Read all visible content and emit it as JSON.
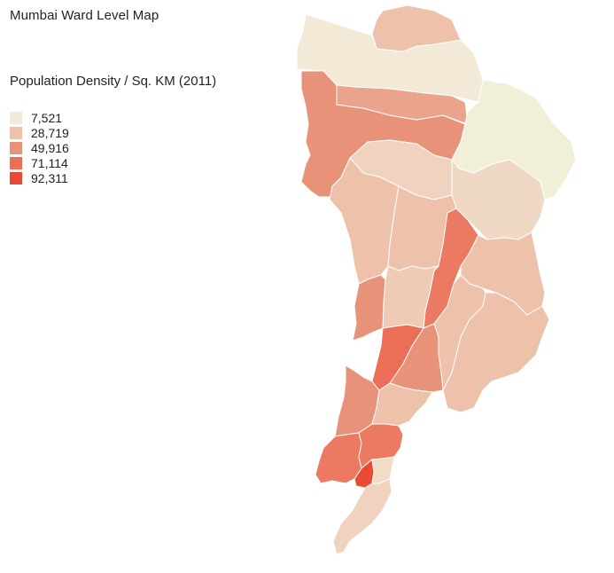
{
  "title": "Mumbai Ward Level Map",
  "legend": {
    "title": "Population Density / Sq. KM (2011)",
    "items": [
      {
        "label": "7,521",
        "color": "#f2e9d6"
      },
      {
        "label": "28,719",
        "color": "#eec1ab"
      },
      {
        "label": "49,916",
        "color": "#e9927a"
      },
      {
        "label": "71,114",
        "color": "#ec6e57"
      },
      {
        "label": "92,311",
        "color": "#ea4a33"
      }
    ]
  },
  "wards": [
    {
      "id": "r-north",
      "color": "#f2e9d6"
    },
    {
      "id": "r-north-top",
      "color": "#eec1ab"
    },
    {
      "id": "p-north",
      "color": "#e9927a"
    },
    {
      "id": "p-south",
      "color": "#eaa38c"
    },
    {
      "id": "t-ward",
      "color": "#f2efd9"
    },
    {
      "id": "s-ward",
      "color": "#f0d9c4"
    },
    {
      "id": "r-south",
      "color": "#f0d3bf"
    },
    {
      "id": "k-west",
      "color": "#eec1ab"
    },
    {
      "id": "k-east",
      "color": "#eec1ab"
    },
    {
      "id": "n-ward",
      "color": "#ec7a63"
    },
    {
      "id": "l-ward",
      "color": "#efcbb5"
    },
    {
      "id": "h-west",
      "color": "#e9927a"
    },
    {
      "id": "h-east",
      "color": "#f0d3bf"
    },
    {
      "id": "m-east",
      "color": "#eec1ab"
    },
    {
      "id": "m-west",
      "color": "#eec1ab"
    },
    {
      "id": "f-north",
      "color": "#eec1ab"
    },
    {
      "id": "g-north",
      "color": "#e9927a"
    },
    {
      "id": "g-south",
      "color": "#ec6e57"
    },
    {
      "id": "f-south",
      "color": "#eec1ab"
    },
    {
      "id": "e-ward",
      "color": "#e9927a"
    },
    {
      "id": "d-ward",
      "color": "#ec7a63"
    },
    {
      "id": "c-ward",
      "color": "#ea4a33"
    },
    {
      "id": "b-ward",
      "color": "#ec7a63"
    },
    {
      "id": "a-ward",
      "color": "#f2dcc6"
    }
  ]
}
